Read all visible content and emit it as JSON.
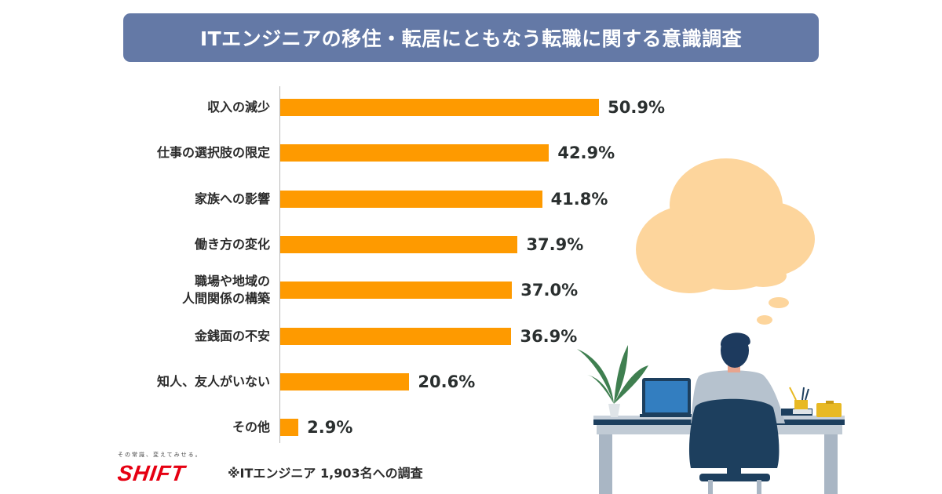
{
  "header": {
    "title": "ITエンジニアの移住・転居にともなう転職に関する意識調査"
  },
  "chart_data": {
    "type": "bar",
    "orientation": "horizontal",
    "title": "ITエンジニアの移住・転居にともなう転職に関する意識調査",
    "xlabel": "",
    "ylabel": "",
    "grid": false,
    "categories": [
      "収入の減少",
      "仕事の選択肢の限定",
      "家族への影響",
      "働き方の変化",
      "職場や地域の\n人間関係の構築",
      "金銭面の不安",
      "知人、友人がいない",
      "その他"
    ],
    "values": [
      50.9,
      42.9,
      41.8,
      37.9,
      37.0,
      36.9,
      20.6,
      2.9
    ],
    "value_labels": [
      "50.9%",
      "42.9%",
      "41.8%",
      "37.9%",
      "37.0%",
      "36.9%",
      "20.6%",
      "2.9%"
    ],
    "unit": "%",
    "bar_color": "#fe9a00"
  },
  "footer": {
    "note": "※ITエンジニア 1,903名への調査",
    "logo_text": "SHIFT",
    "logo_tagline": "その常識、変えてみせる。"
  },
  "colors": {
    "title_bg": "#6479a6",
    "bar": "#fe9a00",
    "cloud": "#fdd59c",
    "logo": "#e60012"
  }
}
